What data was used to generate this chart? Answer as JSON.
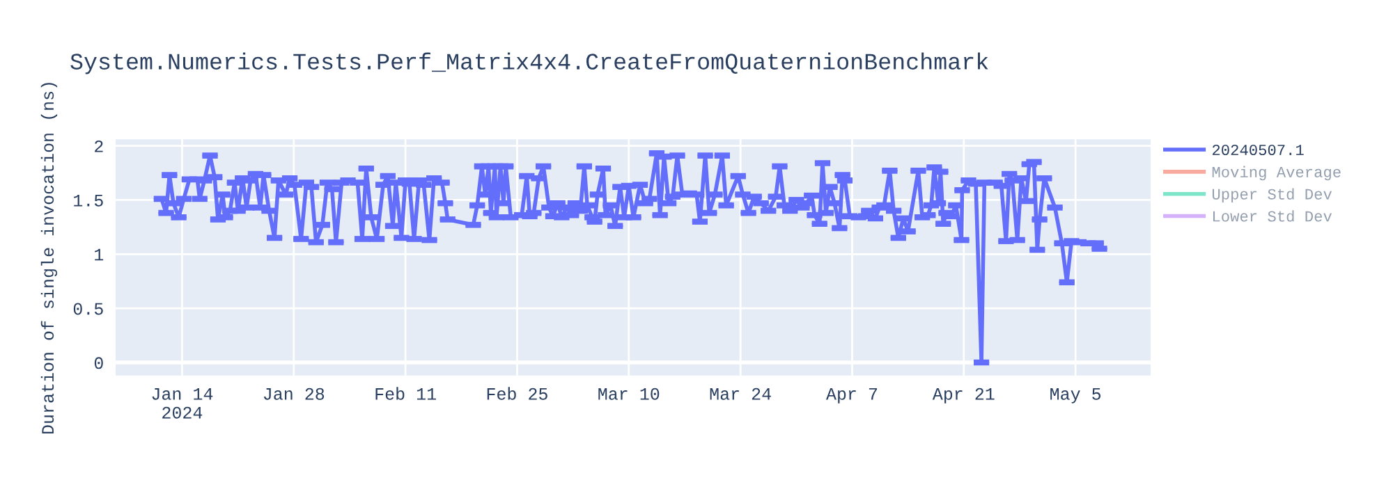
{
  "chart_data": {
    "type": "line",
    "title": "System.Numerics.Tests.Perf_Matrix4x4.CreateFromQuaternionBenchmark",
    "ylabel": "Duration of single invocation (ns)",
    "xlim": [
      "2024-01-05T16:00",
      "2024-05-14T10:00"
    ],
    "ylim": [
      -0.12,
      2.06
    ],
    "xticks": [
      {
        "value": "2024-01-14",
        "label": "Jan 14\n2024"
      },
      {
        "value": "2024-01-28",
        "label": "Jan 28"
      },
      {
        "value": "2024-02-11",
        "label": "Feb 11"
      },
      {
        "value": "2024-02-25",
        "label": "Feb 25"
      },
      {
        "value": "2024-03-10",
        "label": "Mar 10"
      },
      {
        "value": "2024-03-24",
        "label": "Mar 24"
      },
      {
        "value": "2024-04-07",
        "label": "Apr 7"
      },
      {
        "value": "2024-04-21",
        "label": "Apr 21"
      },
      {
        "value": "2024-05-05",
        "label": "May 5"
      }
    ],
    "yticks": [
      0,
      0.5,
      1,
      1.5,
      2
    ],
    "grid": true,
    "legend": "top right",
    "marker": "none",
    "line_style": "solid",
    "series": [
      {
        "name": "20240507.1",
        "color": "#636efa",
        "x": [
          "2024-01-11T10:00",
          "2024-01-12T00:00",
          "2024-01-12T10:00",
          "2024-01-12T22:00",
          "2024-01-13T14:00",
          "2024-01-14T05:00",
          "2024-01-14T22:00",
          "2024-01-15T22:00",
          "2024-01-16T05:00",
          "2024-01-16T19:00",
          "2024-01-17T12:00",
          "2024-01-18T02:00",
          "2024-01-18T12:00",
          "2024-01-19T02:00",
          "2024-01-19T10:00",
          "2024-01-20T00:00",
          "2024-01-20T14:00",
          "2024-01-21T00:00",
          "2024-01-21T14:00",
          "2024-01-22T02:00",
          "2024-01-22T14:00",
          "2024-01-23T05:00",
          "2024-01-23T19:00",
          "2024-01-24T05:00",
          "2024-01-24T22:00",
          "2024-01-25T14:00",
          "2024-01-26T02:00",
          "2024-01-27T00:00",
          "2024-01-27T12:00",
          "2024-01-28T02:00",
          "2024-01-28T22:00",
          "2024-01-29T14:00",
          "2024-01-30T05:00",
          "2024-01-30T19:00",
          "2024-01-31T14:00",
          "2024-02-01T05:00",
          "2024-02-01T19:00",
          "2024-02-02T07:00",
          "2024-02-03T00:00",
          "2024-02-03T19:00",
          "2024-02-05T00:00",
          "2024-02-05T14:00",
          "2024-02-06T02:00",
          "2024-02-06T17:00",
          "2024-02-07T10:00",
          "2024-02-08T05:00",
          "2024-02-08T19:00",
          "2024-02-09T10:00",
          "2024-02-09T19:00",
          "2024-02-10T12:00",
          "2024-02-11T00:00",
          "2024-02-11T12:00",
          "2024-02-12T02:00",
          "2024-02-12T17:00",
          "2024-02-13T07:00",
          "2024-02-14T00:00",
          "2024-02-14T14:00",
          "2024-02-15T14:00",
          "2024-02-16T00:00",
          "2024-02-16T07:00",
          "2024-02-19T12:00",
          "2024-02-20T00:00",
          "2024-02-20T14:00",
          "2024-02-21T00:00",
          "2024-02-21T10:00",
          "2024-02-21T17:00",
          "2024-02-22T05:00",
          "2024-02-22T10:00",
          "2024-02-22T22:00",
          "2024-02-23T07:00",
          "2024-02-23T14:00",
          "2024-02-24T05:00",
          "2024-02-25T14:00",
          "2024-02-26T05:00",
          "2024-02-26T14:00",
          "2024-02-27T02:00",
          "2024-02-27T17:00",
          "2024-02-28T07:00",
          "2024-02-29T00:00",
          "2024-02-29T12:00",
          "2024-03-01T02:00",
          "2024-03-01T14:00",
          "2024-03-02T05:00",
          "2024-03-02T19:00",
          "2024-03-03T07:00",
          "2024-03-03T22:00",
          "2024-03-04T10:00",
          "2024-03-04T19:00",
          "2024-03-05T10:00",
          "2024-03-05T17:00",
          "2024-03-06T02:00",
          "2024-03-06T19:00",
          "2024-03-07T02:00",
          "2024-03-07T17:00",
          "2024-03-08T07:00",
          "2024-03-08T22:00",
          "2024-03-09T10:00",
          "2024-03-10T00:00",
          "2024-03-10T14:00",
          "2024-03-11T10:00",
          "2024-03-12T02:00",
          "2024-03-12T14:00",
          "2024-03-13T12:00",
          "2024-03-13T22:00",
          "2024-03-14T10:00",
          "2024-03-15T00:00",
          "2024-03-15T12:00",
          "2024-03-16T02:00",
          "2024-03-16T17:00",
          "2024-03-17T14:00",
          "2024-03-18T12:00",
          "2024-03-18T22:00",
          "2024-03-19T14:00",
          "2024-03-20T02:00",
          "2024-03-20T19:00",
          "2024-03-21T17:00",
          "2024-03-22T05:00",
          "2024-03-23T17:00",
          "2024-03-24T07:00",
          "2024-03-25T00:00",
          "2024-03-25T17:00",
          "2024-03-26T14:00",
          "2024-03-27T12:00",
          "2024-03-28T10:00",
          "2024-03-28T22:00",
          "2024-03-29T12:00",
          "2024-03-30T05:00",
          "2024-03-31T00:00",
          "2024-03-31T17:00",
          "2024-04-01T07:00",
          "2024-04-01T22:00",
          "2024-04-02T07:00",
          "2024-04-02T22:00",
          "2024-04-03T07:00",
          "2024-04-03T17:00",
          "2024-04-04T05:00",
          "2024-04-04T19:00",
          "2024-04-05T10:00",
          "2024-04-05T19:00",
          "2024-04-06T02:00",
          "2024-04-06T17:00",
          "2024-04-07T19:00",
          "2024-04-08T17:00",
          "2024-04-09T02:00",
          "2024-04-09T22:00",
          "2024-04-10T10:00",
          "2024-04-11T00:00",
          "2024-04-11T17:00",
          "2024-04-12T05:00",
          "2024-04-12T19:00",
          "2024-04-13T10:00",
          "2024-04-14T00:00",
          "2024-04-15T07:00",
          "2024-04-15T19:00",
          "2024-04-16T12:00",
          "2024-04-16T22:00",
          "2024-04-17T07:00",
          "2024-04-17T19:00",
          "2024-04-18T02:00",
          "2024-04-18T10:00",
          "2024-04-18T19:00",
          "2024-04-19T10:00",
          "2024-04-20T00:00",
          "2024-04-20T17:00",
          "2024-04-20T19:00",
          "2024-04-21T14:00",
          "2024-04-22T12:00",
          "2024-04-23T05:00",
          "2024-04-23T14:00",
          "2024-04-24T22:00",
          "2024-04-25T17:00",
          "2024-04-26T07:00",
          "2024-04-26T17:00",
          "2024-04-27T02:00",
          "2024-04-27T17:00",
          "2024-04-28T05:00",
          "2024-04-28T19:00",
          "2024-04-29T05:00",
          "2024-04-29T19:00",
          "2024-04-30T05:00",
          "2024-04-30T12:00",
          "2024-05-01T02:00",
          "2024-05-02T10:00",
          "2024-05-03T07:00",
          "2024-05-03T22:00",
          "2024-05-04T12:00",
          "2024-05-05T10:00",
          "2024-05-06T14:00",
          "2024-05-07T14:00",
          "2024-05-08T00:00"
        ],
        "values": [
          1.51,
          1.38,
          1.73,
          1.47,
          1.34,
          1.51,
          1.69,
          1.69,
          1.51,
          1.68,
          1.91,
          1.71,
          1.32,
          1.55,
          1.34,
          1.4,
          1.66,
          1.4,
          1.7,
          1.43,
          1.68,
          1.74,
          1.43,
          1.73,
          1.4,
          1.15,
          1.68,
          1.55,
          1.7,
          1.64,
          1.14,
          1.66,
          1.62,
          1.11,
          1.27,
          1.66,
          1.6,
          1.11,
          1.66,
          1.68,
          1.66,
          1.14,
          1.79,
          1.34,
          1.14,
          1.64,
          1.72,
          1.26,
          1.66,
          1.15,
          1.68,
          1.65,
          1.14,
          1.68,
          1.64,
          1.13,
          1.7,
          1.66,
          1.47,
          1.32,
          1.27,
          1.45,
          1.81,
          1.55,
          1.81,
          1.38,
          1.81,
          1.34,
          1.81,
          1.47,
          1.81,
          1.34,
          1.36,
          1.72,
          1.35,
          1.38,
          1.7,
          1.81,
          1.43,
          1.35,
          1.47,
          1.34,
          1.43,
          1.36,
          1.47,
          1.4,
          1.81,
          1.45,
          1.34,
          1.3,
          1.55,
          1.79,
          1.36,
          1.45,
          1.26,
          1.62,
          1.34,
          1.63,
          1.34,
          1.64,
          1.47,
          1.51,
          1.93,
          1.36,
          1.9,
          1.47,
          1.53,
          1.91,
          1.55,
          1.56,
          1.55,
          1.3,
          1.91,
          1.38,
          1.55,
          1.91,
          1.45,
          1.72,
          1.55,
          1.38,
          1.53,
          1.47,
          1.4,
          1.53,
          1.81,
          1.45,
          1.4,
          1.5,
          1.43,
          1.47,
          1.54,
          1.36,
          1.28,
          1.84,
          1.38,
          1.62,
          1.47,
          1.24,
          1.73,
          1.68,
          1.35,
          1.34,
          1.35,
          1.4,
          1.33,
          1.43,
          1.45,
          1.77,
          1.4,
          1.15,
          1.33,
          1.21,
          1.77,
          1.34,
          1.36,
          1.45,
          1.8,
          1.47,
          1.76,
          1.28,
          1.38,
          1.35,
          1.45,
          1.13,
          1.59,
          1.68,
          1.65,
          0.0,
          1.66,
          1.66,
          1.63,
          1.12,
          1.74,
          1.68,
          1.13,
          1.7,
          1.49,
          1.83,
          1.85,
          1.04,
          1.32,
          1.7,
          1.43,
          1.1,
          0.74,
          1.12,
          1.11,
          1.1,
          1.1,
          1.05
        ],
        "errors": [
          0.01,
          0.01,
          0.01,
          0.01,
          0.01,
          0.01,
          0.01,
          0.01,
          0.01,
          0.01,
          0.01,
          0.01,
          0.01,
          0.01,
          0.01,
          0.01,
          0.01,
          0.01,
          0.01,
          0.01,
          0.01,
          0.01,
          0.01,
          0.01,
          0.01,
          0.01,
          0.01,
          0.01,
          0.01,
          0.01,
          0.01,
          0.01,
          0.01,
          0.01,
          0.01,
          0.01,
          0.01,
          0.01,
          0.01,
          0.01,
          0.01,
          0.01,
          0.01,
          0.01,
          0.01,
          0.01,
          0.01,
          0.01,
          0.01,
          0.01,
          0.01,
          0.01,
          0.01,
          0.01,
          0.01,
          0.01,
          0.01,
          0.01,
          0.01,
          0.01,
          0.01,
          0.01,
          0.01,
          0.01,
          0.01,
          0.01,
          0.01,
          0.01,
          0.01,
          0.01,
          0.01,
          0.01,
          0.01,
          0.01,
          0.01,
          0.01,
          0.01,
          0.01,
          0.01,
          0.01,
          0.01,
          0.01,
          0.01,
          0.01,
          0.01,
          0.01,
          0.01,
          0.01,
          0.01,
          0.01,
          0.01,
          0.01,
          0.01,
          0.01,
          0.01,
          0.01,
          0.01,
          0.01,
          0.01,
          0.01,
          0.01,
          0.01,
          0.01,
          0.01,
          0.01,
          0.01,
          0.01,
          0.01,
          0.01,
          0.01,
          0.01,
          0.01,
          0.01,
          0.01,
          0.01,
          0.01,
          0.01,
          0.01,
          0.01,
          0.01,
          0.01,
          0.01,
          0.01,
          0.01,
          0.01,
          0.01,
          0.01,
          0.01,
          0.01,
          0.01,
          0.01,
          0.01,
          0.01,
          0.01,
          0.01,
          0.01,
          0.01,
          0.01,
          0.01,
          0.01,
          0.01,
          0.01,
          0.01,
          0.01,
          0.01,
          0.01,
          0.01,
          0.01,
          0.01,
          0.01,
          0.01,
          0.01,
          0.01,
          0.01,
          0.01,
          0.01,
          0.01,
          0.01,
          0.01,
          0.01,
          0.01,
          0.01,
          0.01,
          0.01,
          0.01,
          0.01,
          0.01,
          0.01,
          0.01,
          0.01,
          0.01,
          0.01,
          0.01,
          0.01,
          0.01,
          0.01,
          0.01,
          0.01,
          0.01,
          0.01,
          0.01,
          0.01,
          0.01,
          0.01,
          0.01,
          0.01,
          0.01,
          0.01,
          0.01,
          0.01
        ]
      },
      {
        "name": "Moving Average",
        "color": "#ef553b"
      },
      {
        "name": "Upper Std Dev",
        "color": "#00cc96"
      },
      {
        "name": "Lower Std Dev",
        "color": "#ab63fa"
      }
    ]
  }
}
